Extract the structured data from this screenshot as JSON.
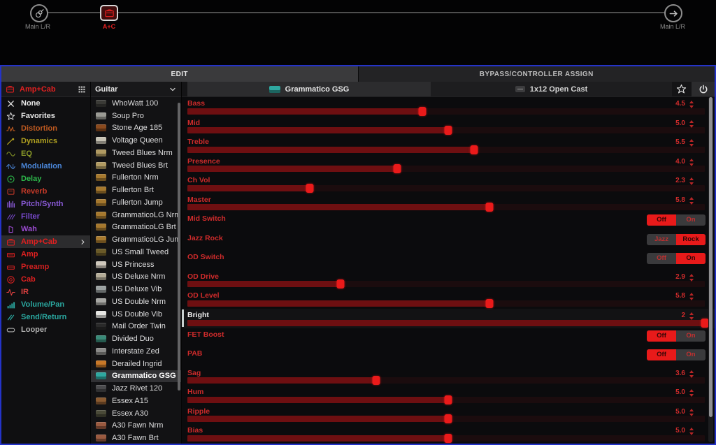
{
  "signal_chain": {
    "input": {
      "label": "Main L/R",
      "icon": "guitar-input-icon"
    },
    "block": {
      "label": "A+C",
      "icon": "amp-cab-icon",
      "selected": true
    },
    "output": {
      "label": "Main L/R",
      "icon": "output-arrow-icon"
    }
  },
  "tabs": [
    {
      "label": "EDIT",
      "active": true
    },
    {
      "label": "BYPASS/CONTROLLER ASSIGN",
      "active": false
    }
  ],
  "category_panel": {
    "header": {
      "label": "Amp+Cab",
      "icon": "amp-cab-icon",
      "color": "#e02020",
      "grid_icon": "grid-view-icon"
    },
    "items": [
      {
        "label": "None",
        "icon": "x-icon",
        "color": "#e8e8e8"
      },
      {
        "label": "Favorites",
        "icon": "star-icon",
        "color": "#e8e8e8"
      },
      {
        "label": "Distortion",
        "icon": "distortion-icon",
        "color": "#c05a20"
      },
      {
        "label": "Dynamics",
        "icon": "dynamics-icon",
        "color": "#b0a020"
      },
      {
        "label": "EQ",
        "icon": "eq-icon",
        "color": "#8a9a28"
      },
      {
        "label": "Modulation",
        "icon": "modulation-icon",
        "color": "#4a86d8"
      },
      {
        "label": "Delay",
        "icon": "delay-icon",
        "color": "#2db84a"
      },
      {
        "label": "Reverb",
        "icon": "reverb-icon",
        "color": "#c83a28"
      },
      {
        "label": "Pitch/Synth",
        "icon": "pitch-icon",
        "color": "#8a5ad8"
      },
      {
        "label": "Filter",
        "icon": "filter-icon",
        "color": "#7a4ad0"
      },
      {
        "label": "Wah",
        "icon": "wah-icon",
        "color": "#9a4ad0"
      },
      {
        "label": "Amp+Cab",
        "icon": "amp-cab-icon",
        "color": "#e02020",
        "selected": true
      },
      {
        "label": "Amp",
        "icon": "amp-icon",
        "color": "#e02020"
      },
      {
        "label": "Preamp",
        "icon": "preamp-icon",
        "color": "#d02020"
      },
      {
        "label": "Cab",
        "icon": "cab-icon",
        "color": "#e02020"
      },
      {
        "label": "IR",
        "icon": "ir-icon",
        "color": "#e04040"
      },
      {
        "label": "Volume/Pan",
        "icon": "volume-icon",
        "color": "#2aa8a0"
      },
      {
        "label": "Send/Return",
        "icon": "send-return-icon",
        "color": "#2aa8a0"
      },
      {
        "label": "Looper",
        "icon": "looper-icon",
        "color": "#b0b0b0"
      }
    ]
  },
  "model_panel": {
    "filter": {
      "label": "Guitar",
      "icon": "chevron-down-icon"
    },
    "items": [
      {
        "label": "WhoWatt 100",
        "swatch": "#3a3a36"
      },
      {
        "label": "Soup Pro",
        "swatch": "#9a9a94"
      },
      {
        "label": "Stone Age 185",
        "swatch": "#8a4a1e"
      },
      {
        "label": "Voltage Queen",
        "swatch": "#c6c2b4"
      },
      {
        "label": "Tweed Blues Nrm",
        "swatch": "#b09a62"
      },
      {
        "label": "Tweed Blues Brt",
        "swatch": "#b09a62"
      },
      {
        "label": "Fullerton Nrm",
        "swatch": "#a5782e"
      },
      {
        "label": "Fullerton Brt",
        "swatch": "#a5782e"
      },
      {
        "label": "Fullerton Jump",
        "swatch": "#a5782e"
      },
      {
        "label": "GrammaticoLG Nrm",
        "swatch": "#a5782e"
      },
      {
        "label": "GrammaticoLG Brt",
        "swatch": "#a5782e"
      },
      {
        "label": "GrammaticoLG Jump",
        "swatch": "#a5782e"
      },
      {
        "label": "US Small Tweed",
        "swatch": "#6a5a28"
      },
      {
        "label": "US Princess",
        "swatch": "#cfc8bc"
      },
      {
        "label": "US Deluxe Nrm",
        "swatch": "#b4ac98"
      },
      {
        "label": "US Deluxe Vib",
        "swatch": "#9aa0a0"
      },
      {
        "label": "US Double Nrm",
        "swatch": "#a8a8a4"
      },
      {
        "label": "US Double Vib",
        "swatch": "#e6e6e2"
      },
      {
        "label": "Mail Order Twin",
        "swatch": "#2a2a2a"
      },
      {
        "label": "Divided Duo",
        "swatch": "#3a8a78"
      },
      {
        "label": "Interstate Zed",
        "swatch": "#8a8a88"
      },
      {
        "label": "Derailed Ingrid",
        "swatch": "#c87828"
      },
      {
        "label": "Grammatico GSG",
        "swatch": "#2fa8a0",
        "selected": true
      },
      {
        "label": "Jazz Rivet 120",
        "swatch": "#4a4a4c"
      },
      {
        "label": "Essex A15",
        "swatch": "#8a5a30"
      },
      {
        "label": "Essex A30",
        "swatch": "#4a4a38"
      },
      {
        "label": "A30 Fawn Nrm",
        "swatch": "#9a5a40"
      },
      {
        "label": "A30 Fawn Brt",
        "swatch": "#9a5a40"
      }
    ]
  },
  "editor": {
    "amp_header": {
      "label": "Grammatico GSG",
      "icon": "amp-thumbnail-icon",
      "swatch": "#2fa8a0"
    },
    "cab_header": {
      "label": "1x12 Open Cast",
      "icon": "cab-thumbnail-icon"
    },
    "favorite_icon": "star-icon",
    "power_icon": "power-icon",
    "params": [
      {
        "name": "Bass",
        "type": "slider",
        "value": "4.5",
        "fill": 0.45
      },
      {
        "name": "Mid",
        "type": "slider",
        "value": "5.0",
        "fill": 0.5
      },
      {
        "name": "Treble",
        "type": "slider",
        "value": "5.5",
        "fill": 0.55
      },
      {
        "name": "Presence",
        "type": "slider",
        "value": "4.0",
        "fill": 0.4
      },
      {
        "name": "Ch Vol",
        "type": "slider",
        "value": "2.3",
        "fill": 0.23
      },
      {
        "name": "Master",
        "type": "slider",
        "value": "5.8",
        "fill": 0.58
      },
      {
        "name": "Mid Switch",
        "type": "switch",
        "options": [
          "Off",
          "On"
        ],
        "active": 0
      },
      {
        "name": "Jazz Rock",
        "type": "switch",
        "options": [
          "Jazz",
          "Rock"
        ],
        "active": 1
      },
      {
        "name": "OD Switch",
        "type": "switch",
        "options": [
          "Off",
          "On"
        ],
        "active": 1
      },
      {
        "name": "OD Drive",
        "type": "slider",
        "value": "2.9",
        "fill": 0.29
      },
      {
        "name": "OD Level",
        "type": "slider",
        "value": "5.8",
        "fill": 0.58
      },
      {
        "name": "Bright",
        "type": "slider",
        "value": "2",
        "fill": 1.0,
        "selected": true
      },
      {
        "name": "FET Boost",
        "type": "switch",
        "options": [
          "Off",
          "On"
        ],
        "active": 0
      },
      {
        "name": "PAB",
        "type": "switch",
        "options": [
          "Off",
          "On"
        ],
        "active": 0
      },
      {
        "name": "Sag",
        "type": "slider",
        "value": "3.6",
        "fill": 0.36
      },
      {
        "name": "Hum",
        "type": "slider",
        "value": "5.0",
        "fill": 0.5
      },
      {
        "name": "Ripple",
        "type": "slider",
        "value": "5.0",
        "fill": 0.5
      },
      {
        "name": "Bias",
        "type": "slider",
        "value": "5.0",
        "fill": 0.5
      }
    ]
  },
  "colors": {
    "accent_red": "#e81a1a",
    "slider_fill": "#6e0f11",
    "param_text": "#cf2b2b",
    "frame_blue": "#2433c8",
    "selected_row_bg": "#313134"
  }
}
